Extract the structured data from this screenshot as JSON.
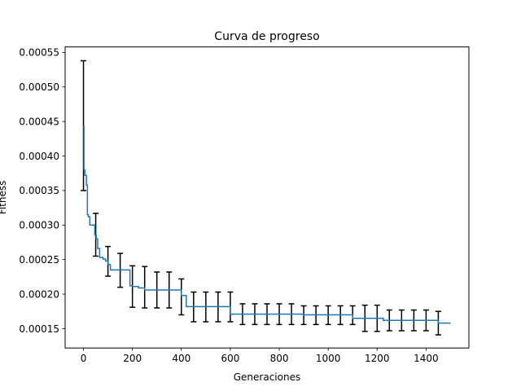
{
  "chart_data": {
    "type": "line",
    "title": "Curva de progreso",
    "xlabel": "Generaciones",
    "ylabel": "Fitness",
    "xlim": [
      -75,
      1575
    ],
    "ylim": [
      0.000122,
      0.000558
    ],
    "xticks": [
      0,
      200,
      400,
      600,
      800,
      1000,
      1200,
      1400
    ],
    "xtick_labels": [
      "0",
      "200",
      "400",
      "600",
      "800",
      "1000",
      "1200",
      "1400"
    ],
    "yticks": [
      0.00015,
      0.0002,
      0.00025,
      0.0003,
      0.00035,
      0.0004,
      0.00045,
      0.0005,
      0.00055
    ],
    "ytick_labels": [
      "0.00015",
      "0.00020",
      "0.00025",
      "0.00030",
      "0.00035",
      "0.00040",
      "0.00045",
      "0.00050",
      "0.00055"
    ],
    "grid": false,
    "series": [
      {
        "color": "#1f77b4",
        "step": true,
        "points": [
          [
            0,
            0.000443
          ],
          [
            2,
            0.00038
          ],
          [
            6,
            0.000372
          ],
          [
            12,
            0.000358
          ],
          [
            16,
            0.000315
          ],
          [
            20,
            0.000312
          ],
          [
            26,
            0.0003
          ],
          [
            46,
            0.000286
          ],
          [
            52,
            0.00028
          ],
          [
            58,
            0.000266
          ],
          [
            66,
            0.000253
          ],
          [
            80,
            0.000251
          ],
          [
            90,
            0.000248
          ],
          [
            100,
            0.000243
          ],
          [
            110,
            0.000235
          ],
          [
            190,
            0.000212
          ],
          [
            200,
            0.000211
          ],
          [
            225,
            0.000209
          ],
          [
            250,
            0.000206
          ],
          [
            400,
            0.000198
          ],
          [
            420,
            0.000182
          ],
          [
            600,
            0.000171
          ],
          [
            900,
            0.00017
          ],
          [
            1100,
            0.000165
          ],
          [
            1225,
            0.000162
          ],
          [
            1450,
            0.000158
          ],
          [
            1500,
            0.000158
          ]
        ]
      }
    ],
    "error_bars": {
      "color": "#000000",
      "points": [
        {
          "x": 0,
          "y": 0.000443,
          "ylow": 0.00035,
          "yhigh": 0.000538
        },
        {
          "x": 50,
          "y": 0.000286,
          "ylow": 0.000255,
          "yhigh": 0.000317
        },
        {
          "x": 100,
          "y": 0.000248,
          "ylow": 0.000226,
          "yhigh": 0.000269
        },
        {
          "x": 150,
          "y": 0.000235,
          "ylow": 0.00021,
          "yhigh": 0.000259
        },
        {
          "x": 200,
          "y": 0.000211,
          "ylow": 0.000181,
          "yhigh": 0.000241
        },
        {
          "x": 250,
          "y": 0.00021,
          "ylow": 0.00018,
          "yhigh": 0.00024
        },
        {
          "x": 300,
          "y": 0.000206,
          "ylow": 0.00018,
          "yhigh": 0.000232
        },
        {
          "x": 350,
          "y": 0.000206,
          "ylow": 0.00018,
          "yhigh": 0.000232
        },
        {
          "x": 400,
          "y": 0.000196,
          "ylow": 0.00017,
          "yhigh": 0.000222
        },
        {
          "x": 450,
          "y": 0.000182,
          "ylow": 0.00016,
          "yhigh": 0.000203
        },
        {
          "x": 500,
          "y": 0.000182,
          "ylow": 0.00016,
          "yhigh": 0.000203
        },
        {
          "x": 550,
          "y": 0.000182,
          "ylow": 0.00016,
          "yhigh": 0.000203
        },
        {
          "x": 600,
          "y": 0.000182,
          "ylow": 0.00016,
          "yhigh": 0.000203
        },
        {
          "x": 650,
          "y": 0.000171,
          "ylow": 0.000156,
          "yhigh": 0.000186
        },
        {
          "x": 700,
          "y": 0.000171,
          "ylow": 0.000156,
          "yhigh": 0.000186
        },
        {
          "x": 750,
          "y": 0.000171,
          "ylow": 0.000156,
          "yhigh": 0.000186
        },
        {
          "x": 800,
          "y": 0.000171,
          "ylow": 0.000156,
          "yhigh": 0.000186
        },
        {
          "x": 850,
          "y": 0.000171,
          "ylow": 0.000156,
          "yhigh": 0.000186
        },
        {
          "x": 900,
          "y": 0.00017,
          "ylow": 0.000156,
          "yhigh": 0.000183
        },
        {
          "x": 950,
          "y": 0.00017,
          "ylow": 0.000156,
          "yhigh": 0.000183
        },
        {
          "x": 1000,
          "y": 0.00017,
          "ylow": 0.000156,
          "yhigh": 0.000183
        },
        {
          "x": 1050,
          "y": 0.00017,
          "ylow": 0.000156,
          "yhigh": 0.000183
        },
        {
          "x": 1100,
          "y": 0.00017,
          "ylow": 0.000156,
          "yhigh": 0.000183
        },
        {
          "x": 1150,
          "y": 0.000165,
          "ylow": 0.000146,
          "yhigh": 0.000184
        },
        {
          "x": 1200,
          "y": 0.000165,
          "ylow": 0.000146,
          "yhigh": 0.000184
        },
        {
          "x": 1250,
          "y": 0.000162,
          "ylow": 0.000147,
          "yhigh": 0.000177
        },
        {
          "x": 1300,
          "y": 0.000162,
          "ylow": 0.000147,
          "yhigh": 0.000177
        },
        {
          "x": 1350,
          "y": 0.000162,
          "ylow": 0.000147,
          "yhigh": 0.000177
        },
        {
          "x": 1400,
          "y": 0.000162,
          "ylow": 0.000147,
          "yhigh": 0.000177
        },
        {
          "x": 1450,
          "y": 0.000158,
          "ylow": 0.000141,
          "yhigh": 0.000175
        }
      ]
    }
  }
}
